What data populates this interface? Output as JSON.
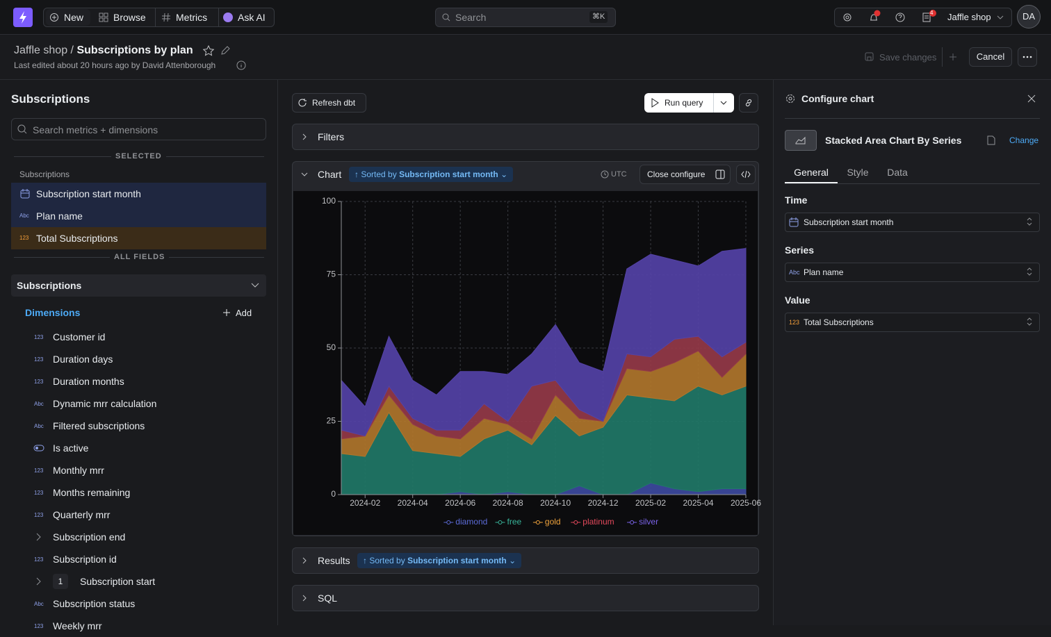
{
  "nav": {
    "new": "New",
    "browse": "Browse",
    "metrics": "Metrics",
    "ask_ai": "Ask AI",
    "search": "Search",
    "shortcut": "⌘K",
    "notifications_badge": "4",
    "project": "Jaffle shop",
    "avatar": "DA"
  },
  "header": {
    "project": "Jaffle shop",
    "separator": "/",
    "title": "Subscriptions by plan",
    "subtitle": "Last edited about 20 hours ago by David Attenborough",
    "save": "Save changes",
    "cancel": "Cancel"
  },
  "sidebar": {
    "title": "Subscriptions",
    "search_placeholder": "Search metrics + dimensions",
    "selected_heading": "SELECTED",
    "selected_group": "Subscriptions",
    "selected": [
      {
        "label": "Subscription start month"
      },
      {
        "icon": "Abc",
        "label": "Plan name"
      },
      {
        "icon": "123",
        "label": "Total Subscriptions",
        "metric": true
      }
    ],
    "all_fields_heading": "ALL FIELDS",
    "explore": "Subscriptions",
    "dimensions": "Dimensions",
    "add": "Add",
    "fields": [
      {
        "icon": "123",
        "label": "Customer id"
      },
      {
        "icon": "123",
        "label": "Duration days"
      },
      {
        "icon": "123",
        "label": "Duration months"
      },
      {
        "icon": "Abc",
        "label": "Dynamic mrr calculation"
      },
      {
        "icon": "Abc",
        "label": "Filtered subscriptions"
      },
      {
        "label": "Is active"
      },
      {
        "icon": "123",
        "label": "Monthly mrr"
      },
      {
        "icon": "123",
        "label": "Months remaining"
      },
      {
        "icon": "123",
        "label": "Quarterly mrr"
      },
      {
        "label": "Subscription end",
        "expandable": true
      },
      {
        "icon": "123",
        "label": "Subscription id"
      },
      {
        "label": "Subscription start",
        "expandable": true,
        "badge": "1"
      },
      {
        "icon": "Abc",
        "label": "Subscription status"
      },
      {
        "icon": "123",
        "label": "Weekly mrr"
      }
    ]
  },
  "main": {
    "refresh": "Refresh dbt",
    "run": "Run query",
    "filters": "Filters",
    "chart": "Chart",
    "sorted_prefix": "Sorted by",
    "sort_field": "Subscription start month",
    "timezone": "UTC",
    "close_configure": "Close configure",
    "results": "Results",
    "sql": "SQL"
  },
  "config": {
    "title": "Configure chart",
    "chart_type": "Stacked Area Chart By Series",
    "change": "Change",
    "tabs": [
      "General",
      "Style",
      "Data"
    ],
    "sections": [
      {
        "label": "Time",
        "value": "Subscription start month"
      },
      {
        "label": "Series",
        "icon": "Abc",
        "value": "Plan name"
      },
      {
        "label": "Value",
        "icon": "123",
        "value": "Total Subscriptions"
      }
    ]
  },
  "chart_data": {
    "type": "area",
    "stacked": true,
    "categories": [
      null,
      "2024-02",
      null,
      "2024-04",
      null,
      "2024-06",
      null,
      "2024-08",
      null,
      "2024-10",
      null,
      "2024-12",
      null,
      "2025-02",
      null,
      "2025-04",
      null,
      "2025-06"
    ],
    "ylim": [
      0,
      100
    ],
    "yticks": [
      0,
      25,
      50,
      75,
      100
    ],
    "grid": true,
    "series": [
      {
        "name": "diamond",
        "color": "#3d4a9e",
        "label_color": "#5c6bd8",
        "values": [
          0,
          0,
          0,
          0,
          0,
          1,
          0,
          1,
          0,
          0,
          3,
          0,
          0,
          4,
          2,
          1,
          2,
          2
        ]
      },
      {
        "name": "free",
        "color": "#217867",
        "label_color": "#38b59a",
        "values": [
          14,
          13,
          28,
          15,
          14,
          12,
          19,
          21,
          17,
          27,
          17,
          23,
          34,
          29,
          30,
          36,
          32,
          35
        ]
      },
      {
        "name": "gold",
        "color": "#b0762b",
        "label_color": "#f0a33c",
        "values": [
          5,
          7,
          6,
          9,
          6,
          6,
          7,
          2,
          2,
          7,
          6,
          2,
          9,
          9,
          13,
          12,
          6,
          11
        ]
      },
      {
        "name": "platinum",
        "color": "#953a48",
        "label_color": "#e4495c",
        "values": [
          3,
          0,
          3,
          2,
          2,
          3,
          5,
          1,
          18,
          5,
          3,
          0,
          5,
          5,
          8,
          5,
          7,
          4
        ]
      },
      {
        "name": "silver",
        "color": "#5442a6",
        "label_color": "#7b63ea",
        "values": [
          17,
          10,
          17,
          13,
          12,
          20,
          11,
          16,
          11,
          19,
          16,
          17,
          29,
          35,
          27,
          24,
          36,
          32
        ]
      }
    ]
  }
}
